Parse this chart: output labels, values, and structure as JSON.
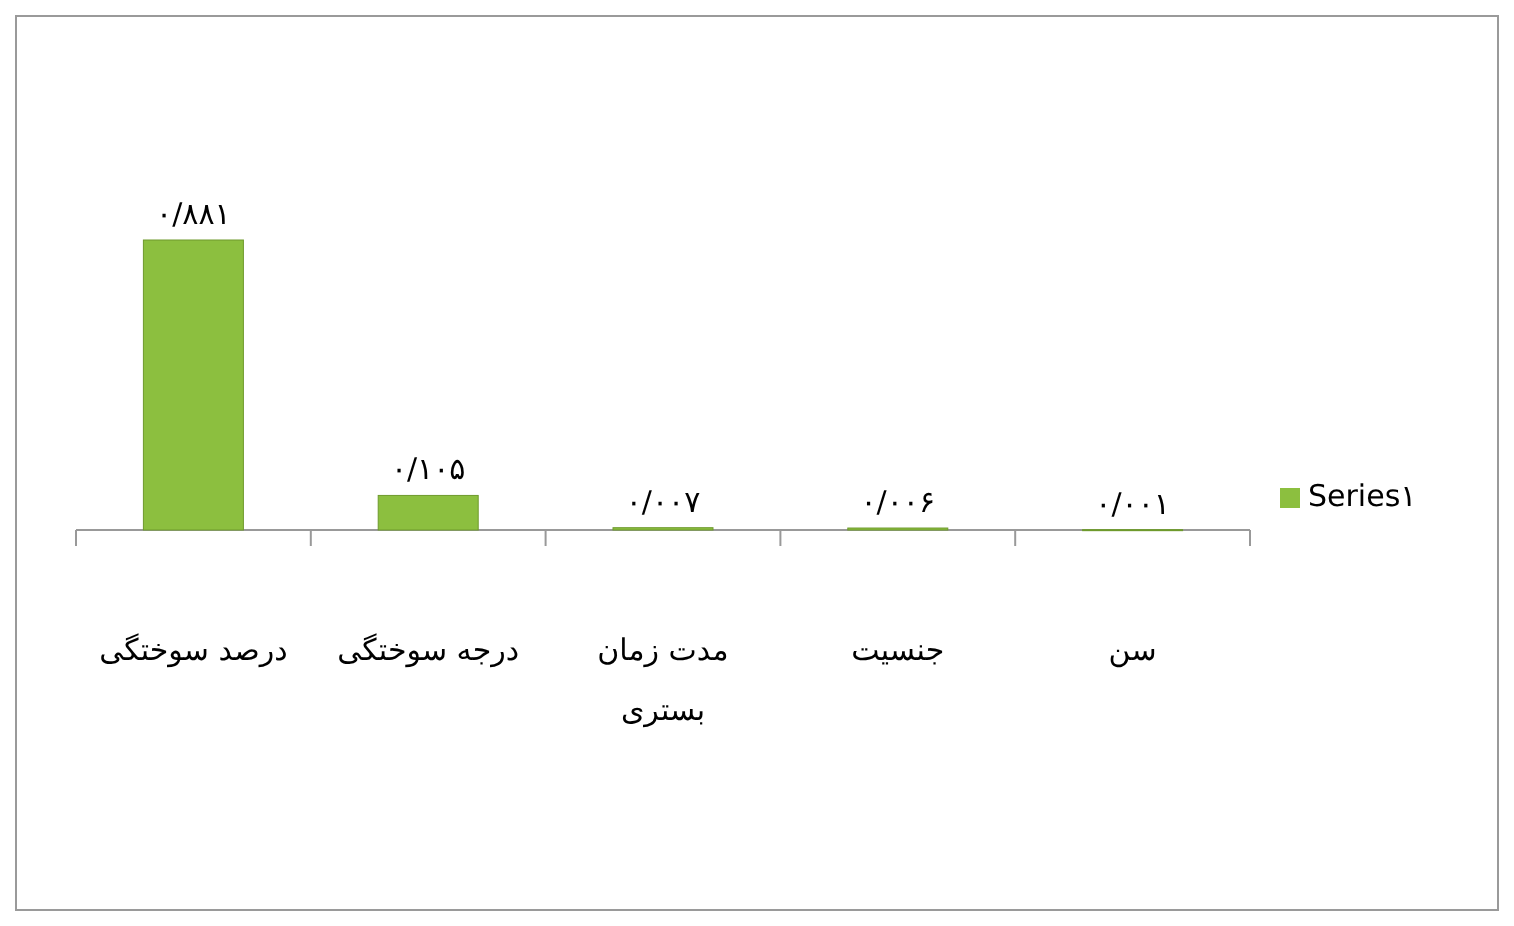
{
  "chart_data": {
    "type": "bar",
    "categories": [
      "درصد سوختگی",
      "درجه سوختگی",
      "مدت زمان بستری",
      "جنسیت",
      "سن"
    ],
    "series": [
      {
        "name": "Series۱",
        "color": "#8cbf3f",
        "values": [
          0.881,
          0.105,
          0.007,
          0.006,
          0.001
        ],
        "value_labels": [
          "٠/٨٨١",
          "٠/١٠۵",
          "٠/٠٠٧",
          "٠/٠٠۶",
          "٠/٠٠١"
        ]
      }
    ],
    "legend": "right",
    "grid": false
  }
}
